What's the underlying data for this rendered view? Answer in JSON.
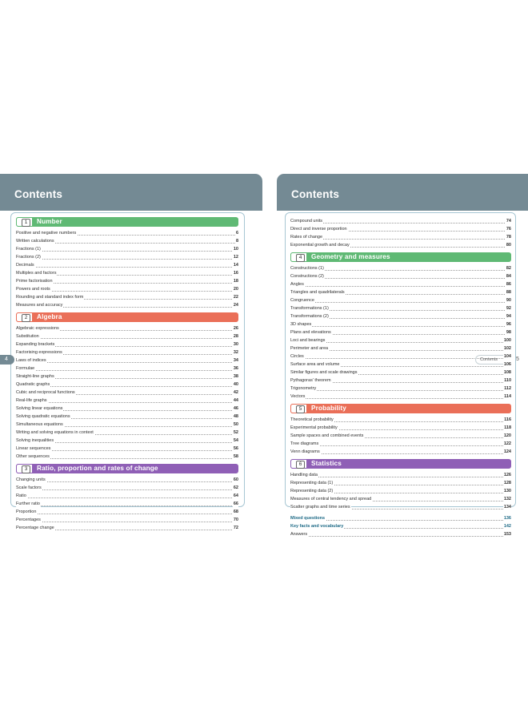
{
  "left_page": {
    "title": "Contents",
    "page_number": "4",
    "sections": [
      {
        "number": "1",
        "title": "Number",
        "color": "#5fb974",
        "entries": [
          {
            "title": "Positive and negative numbers",
            "page": "6"
          },
          {
            "title": "Written calculations",
            "page": "8"
          },
          {
            "title": "Fractions (1)",
            "page": "10"
          },
          {
            "title": "Fractions (2)",
            "page": "12"
          },
          {
            "title": "Decimals",
            "page": "14"
          },
          {
            "title": "Multiples and factors",
            "page": "16"
          },
          {
            "title": "Prime factorisation",
            "page": "18"
          },
          {
            "title": "Powers and roots",
            "page": "20"
          },
          {
            "title": "Rounding and standard index form",
            "page": "22"
          },
          {
            "title": "Measures and accuracy",
            "page": "24"
          }
        ]
      },
      {
        "number": "2",
        "title": "Algebra",
        "color": "#ea6f58",
        "entries": [
          {
            "title": "Algebraic expressions",
            "page": "26"
          },
          {
            "title": "Substitution",
            "page": "28"
          },
          {
            "title": "Expanding brackets",
            "page": "30"
          },
          {
            "title": "Factorising expressions",
            "page": "32"
          },
          {
            "title": "Laws of indices",
            "page": "34"
          },
          {
            "title": "Formulae",
            "page": "36"
          },
          {
            "title": "Straight-line graphs",
            "page": "38"
          },
          {
            "title": "Quadratic graphs",
            "page": "40"
          },
          {
            "title": "Cubic and reciprocal functions",
            "page": "42"
          },
          {
            "title": "Real-life graphs",
            "page": "44"
          },
          {
            "title": "Solving linear equations",
            "page": "46"
          },
          {
            "title": "Solving quadratic equations",
            "page": "48"
          },
          {
            "title": "Simultaneous equations",
            "page": "50"
          },
          {
            "title": "Writing and solving equations in context",
            "page": "52"
          },
          {
            "title": "Solving inequalities",
            "page": "54"
          },
          {
            "title": "Linear sequences",
            "page": "56"
          },
          {
            "title": "Other sequences",
            "page": "58"
          }
        ]
      },
      {
        "number": "3",
        "title": "Ratio, proportion and rates of change",
        "color": "#8f5fb6",
        "entries": [
          {
            "title": "Changing units",
            "page": "60"
          },
          {
            "title": "Scale factors",
            "page": "62"
          },
          {
            "title": "Ratio",
            "page": "64"
          },
          {
            "title": "Further ratio",
            "page": "66"
          },
          {
            "title": "Proportion",
            "page": "68"
          },
          {
            "title": "Percentages",
            "page": "70"
          },
          {
            "title": "Percentage change",
            "page": "72"
          }
        ]
      }
    ]
  },
  "right_page": {
    "title": "Contents",
    "footer_label": "Contents",
    "page_number": "5",
    "lead_entries": [
      {
        "title": "Compound units",
        "page": "74"
      },
      {
        "title": "Direct and inverse proportion",
        "page": "76"
      },
      {
        "title": "Rates of change",
        "page": "78"
      },
      {
        "title": "Exponential growth and decay",
        "page": "80"
      }
    ],
    "sections": [
      {
        "number": "4",
        "title": "Geometry and measures",
        "color": "#5fb974",
        "entries": [
          {
            "title": "Constructions (1)",
            "page": "82"
          },
          {
            "title": "Constructions (2)",
            "page": "84"
          },
          {
            "title": "Angles",
            "page": "86"
          },
          {
            "title": "Triangles and quadrilaterals",
            "page": "88"
          },
          {
            "title": "Congruence",
            "page": "90"
          },
          {
            "title": "Transformations (1)",
            "page": "92"
          },
          {
            "title": "Transformations (2)",
            "page": "94"
          },
          {
            "title": "3D shapes",
            "page": "96"
          },
          {
            "title": "Plans and elevations",
            "page": "98"
          },
          {
            "title": "Loci and bearings",
            "page": "100"
          },
          {
            "title": "Perimeter and area",
            "page": "102"
          },
          {
            "title": "Circles",
            "page": "104"
          },
          {
            "title": "Surface area and volume",
            "page": "106"
          },
          {
            "title": "Similar figures and scale drawings",
            "page": "108"
          },
          {
            "title": "Pythagoras' theorem",
            "page": "110"
          },
          {
            "title": "Trigonometry",
            "page": "112"
          },
          {
            "title": "Vectors",
            "page": "114"
          }
        ]
      },
      {
        "number": "5",
        "title": "Probability",
        "color": "#ea6f58",
        "entries": [
          {
            "title": "Theoretical probability",
            "page": "116"
          },
          {
            "title": "Experimental probability",
            "page": "118"
          },
          {
            "title": "Sample spaces and combined events",
            "page": "120"
          },
          {
            "title": "Tree diagrams",
            "page": "122"
          },
          {
            "title": "Venn diagrams",
            "page": "124"
          }
        ]
      },
      {
        "number": "6",
        "title": "Statistics",
        "color": "#8f5fb6",
        "entries": [
          {
            "title": "Handling data",
            "page": "126"
          },
          {
            "title": "Representing data (1)",
            "page": "128"
          },
          {
            "title": "Representing data (2)",
            "page": "130"
          },
          {
            "title": "Measures of central tendency and spread",
            "page": "132"
          },
          {
            "title": "Scatter graphs and time series",
            "page": "134"
          }
        ]
      }
    ],
    "extra_entries": [
      {
        "title": "Mixed questions",
        "page": "136"
      },
      {
        "title": "Key facts and vocabulary",
        "page": "142"
      },
      {
        "title": "Answers",
        "page": "153"
      }
    ]
  }
}
